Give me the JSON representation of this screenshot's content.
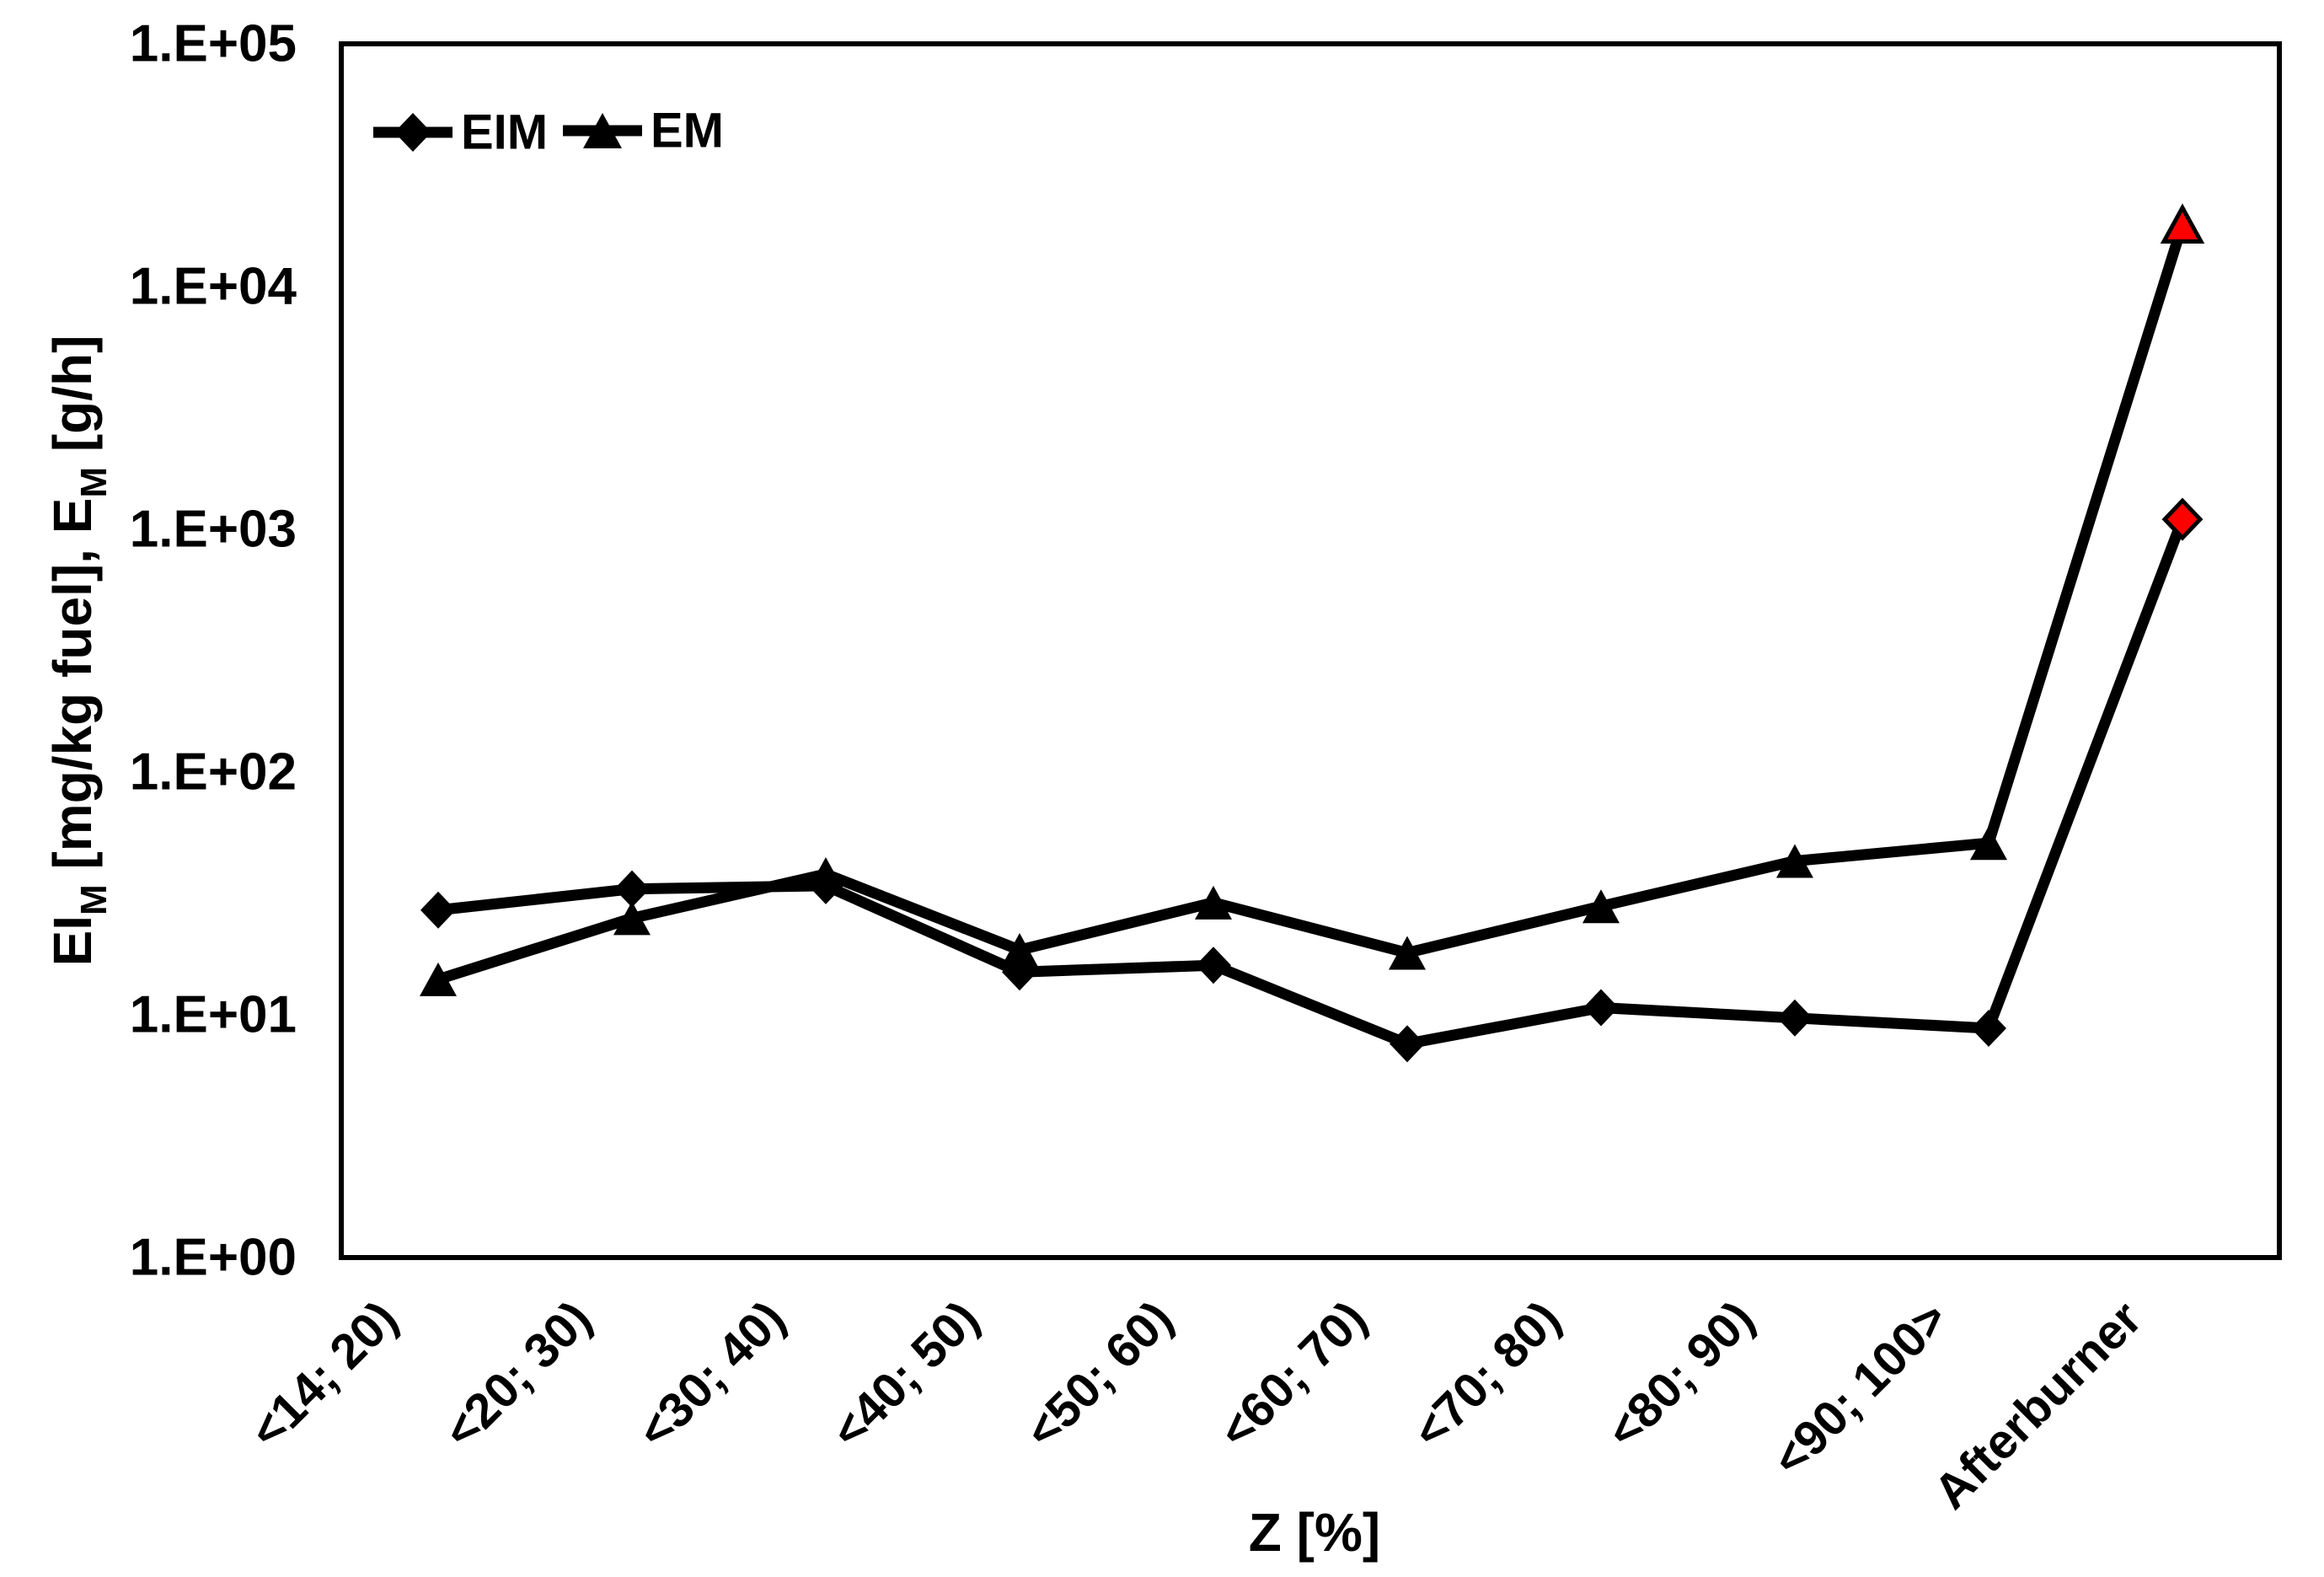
{
  "chart_data": {
    "type": "line",
    "title": "",
    "xlabel": "Z [%]",
    "ylabel": {
      "text": "EIM [mg/kg fuel], EM [g/h]",
      "rich": [
        {
          "t": "EI",
          "sub": false
        },
        {
          "t": "M",
          "sub": true
        },
        {
          "t": " [mg/kg fuel], E",
          "sub": false
        },
        {
          "t": "M",
          "sub": true
        },
        {
          "t": " [g/h]",
          "sub": false
        }
      ]
    },
    "y_axis": {
      "scale": "log",
      "ylim": [
        1,
        100000
      ],
      "ticks": [
        "1.E+00",
        "1.E+01",
        "1.E+02",
        "1.E+03",
        "1.E+04",
        "1.E+05"
      ]
    },
    "categories": [
      "<14; 20)",
      "<20; 30)",
      "<30; 40)",
      "<40; 50)",
      "<50; 60)",
      "<60; 70)",
      "<70; 80)",
      "<80; 90)",
      "<90; 100>",
      "Afterburner"
    ],
    "series": [
      {
        "name": "EIM",
        "marker": "diamond",
        "color": "#000000",
        "values": [
          27,
          33,
          34,
          15,
          16,
          7.6,
          10.7,
          9.7,
          8.8,
          1100
        ]
      },
      {
        "name": "EM",
        "marker": "triangle",
        "color": "#000000",
        "values": [
          14,
          25,
          38,
          18.5,
          29,
          18,
          28,
          43,
          51,
          18000
        ]
      }
    ],
    "highlight": {
      "category": "Afterburner",
      "color": "#ff0000",
      "note": "last data point of each series is drawn red"
    },
    "legend_position": "top-left-inside",
    "grid": false,
    "background": "#ffffff"
  }
}
